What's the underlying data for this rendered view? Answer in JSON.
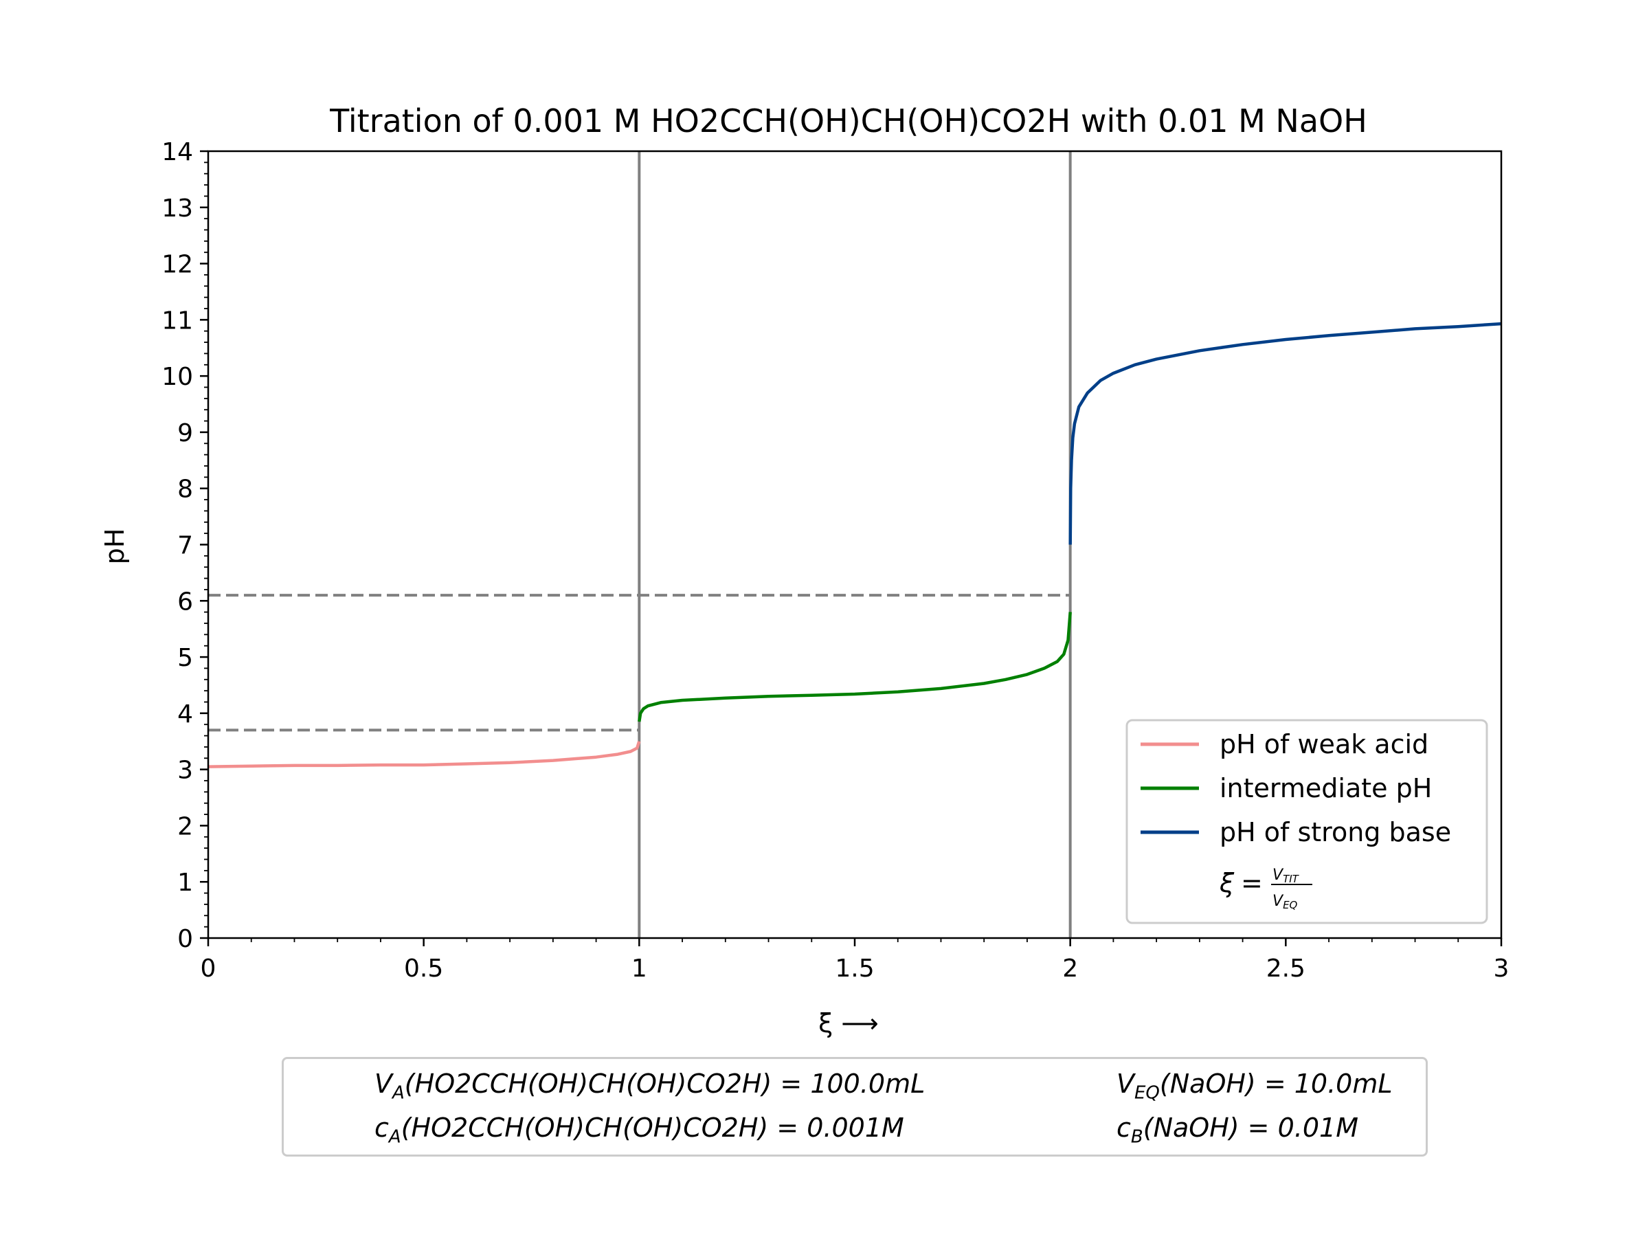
{
  "chart_data": {
    "type": "line",
    "title": "Titration of 0.001 M HO2CCH(OH)CH(OH)CO2H  with 0.01 M NaOH",
    "xlabel": "ξ ⟶",
    "ylabel": "pH",
    "xlim": [
      0,
      3
    ],
    "ylim": [
      0,
      14
    ],
    "x_ticks": [
      "0",
      "0.5",
      "1",
      "1.5",
      "2",
      "2.5",
      "3"
    ],
    "y_ticks": [
      "0",
      "1",
      "2",
      "3",
      "4",
      "5",
      "6",
      "7",
      "8",
      "9",
      "10",
      "11",
      "12",
      "13",
      "14"
    ],
    "series": [
      {
        "name": "pH of weak acid",
        "color": "#f28e8e",
        "x": [
          0,
          0.1,
          0.2,
          0.3,
          0.4,
          0.5,
          0.6,
          0.7,
          0.8,
          0.85,
          0.9,
          0.95,
          0.98,
          0.995,
          1.0
        ],
        "y": [
          3.05,
          3.06,
          3.07,
          3.07,
          3.08,
          3.08,
          3.1,
          3.12,
          3.16,
          3.19,
          3.22,
          3.27,
          3.32,
          3.38,
          3.5
        ]
      },
      {
        "name": "intermediate pH",
        "color": "#008000",
        "x": [
          1.0,
          1.003,
          1.01,
          1.02,
          1.05,
          1.1,
          1.2,
          1.3,
          1.4,
          1.5,
          1.6,
          1.7,
          1.8,
          1.85,
          1.9,
          1.94,
          1.97,
          1.985,
          1.995,
          2.0
        ],
        "y": [
          3.85,
          4.0,
          4.08,
          4.13,
          4.19,
          4.23,
          4.27,
          4.3,
          4.32,
          4.34,
          4.38,
          4.44,
          4.53,
          4.6,
          4.69,
          4.8,
          4.92,
          5.05,
          5.3,
          5.8
        ]
      },
      {
        "name": "pH of strong base",
        "color": "#003f88",
        "x": [
          2.0,
          2.001,
          2.003,
          2.006,
          2.01,
          2.02,
          2.04,
          2.07,
          2.1,
          2.15,
          2.2,
          2.3,
          2.4,
          2.5,
          2.6,
          2.7,
          2.8,
          2.9,
          3.0
        ],
        "y": [
          7.0,
          8.0,
          8.5,
          8.9,
          9.15,
          9.45,
          9.7,
          9.92,
          10.05,
          10.2,
          10.3,
          10.45,
          10.56,
          10.65,
          10.72,
          10.78,
          10.84,
          10.88,
          10.93
        ]
      }
    ],
    "reference_lines": {
      "vertical_x": [
        1,
        2
      ],
      "horizontal_dashed": [
        {
          "y": 3.7,
          "x_end": 1
        },
        {
          "y": 6.1,
          "x_end": 2
        }
      ]
    },
    "legend": {
      "placement": "lower-right",
      "extra_entry": {
        "lhs": "ξ",
        "num": "V",
        "num_sub": "TIT",
        "den": "V",
        "den_sub": "EQ"
      }
    }
  },
  "info_box": {
    "va_label": "V",
    "va_sub": "A",
    "va_rest": "(HO2CCH(OH)CH(OH)CO2H) = 100.0mL",
    "ca_label": "c",
    "ca_sub": "A",
    "ca_rest": "(HO2CCH(OH)CH(OH)CO2H) = 0.001M",
    "veq_label": "V",
    "veq_sub": "EQ",
    "veq_rest": "(NaOH) = 10.0mL",
    "cb_label": "c",
    "cb_sub": "B",
    "cb_rest": "(NaOH) = 0.01M"
  },
  "colors": {
    "reference_line": "#808080"
  }
}
